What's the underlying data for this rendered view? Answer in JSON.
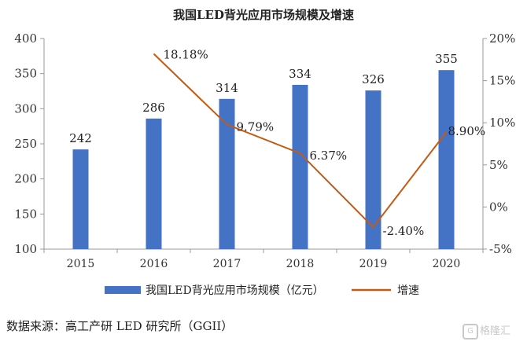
{
  "chart_data": {
    "type": "bar+line",
    "title": "我国LED背光应用市场规模及增速",
    "categories": [
      "2015",
      "2016",
      "2017",
      "2018",
      "2019",
      "2020"
    ],
    "series": [
      {
        "name": "我国LED背光应用市场规模（亿元）",
        "type": "bar",
        "axis": "left",
        "values": [
          242,
          286,
          314,
          334,
          326,
          355
        ],
        "labels": [
          "242",
          "286",
          "314",
          "334",
          "326",
          "355"
        ],
        "color": "#4472C4"
      },
      {
        "name": "增速",
        "type": "line",
        "axis": "right",
        "values": [
          null,
          18.18,
          9.79,
          6.37,
          -2.4,
          8.9
        ],
        "labels": [
          "",
          "18.18%",
          "9.79%",
          "6.37%",
          "-2.40%",
          "8.90%"
        ],
        "color": "#C55A11"
      }
    ],
    "y_left": {
      "min": 100,
      "max": 400,
      "ticks": [
        100,
        150,
        200,
        250,
        300,
        350,
        400
      ]
    },
    "y_right": {
      "min": -5,
      "max": 20,
      "ticks": [
        -5,
        0,
        5,
        10,
        15,
        20
      ],
      "tick_labels": [
        "-5%",
        "0%",
        "5%",
        "10%",
        "15%",
        "20%"
      ]
    },
    "grid": false,
    "legend_position": "bottom"
  },
  "source": "数据来源：高工产研 LED 研究所（GGII）",
  "watermark": {
    "logo": "G",
    "text": "格隆汇"
  }
}
